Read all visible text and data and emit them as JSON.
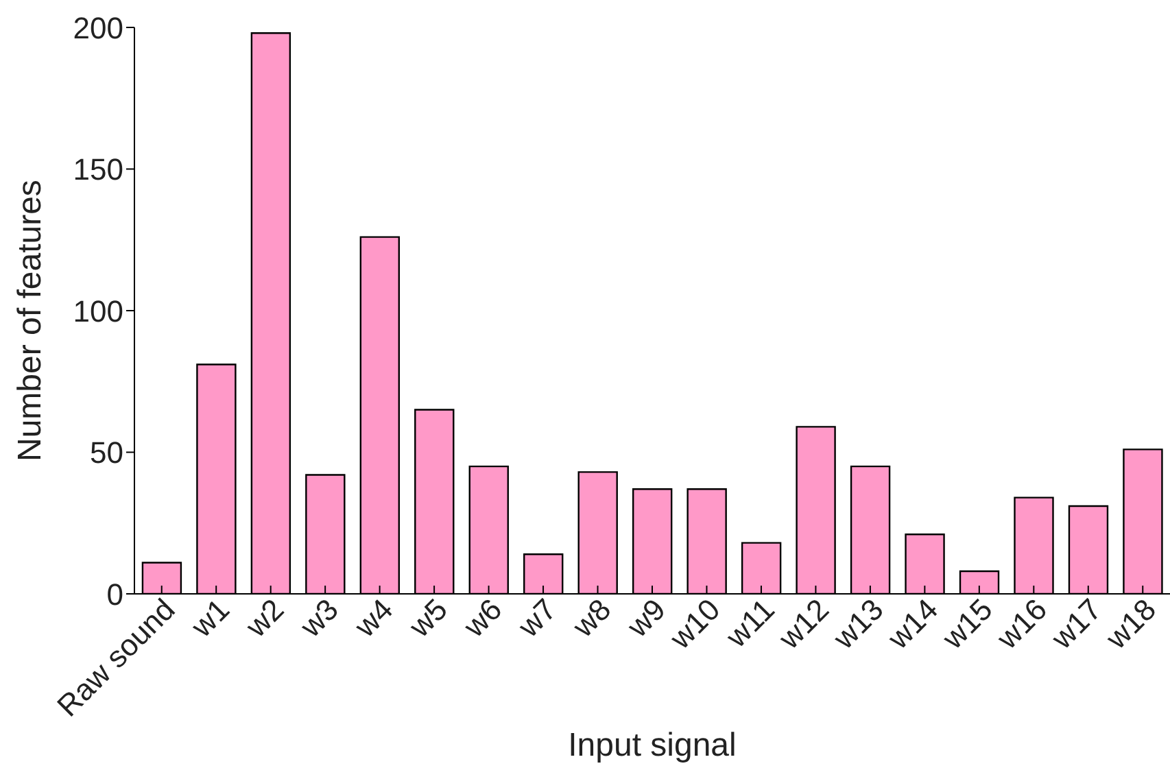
{
  "chart_data": {
    "type": "bar",
    "xlabel": "Input signal",
    "ylabel": "Number of features",
    "categories": [
      "Raw sound",
      "w1",
      "w2",
      "w3",
      "w4",
      "w5",
      "w6",
      "w7",
      "w8",
      "w9",
      "w10",
      "w11",
      "w12",
      "w13",
      "w14",
      "w15",
      "w16",
      "w17",
      "w18"
    ],
    "values": [
      11,
      81,
      198,
      42,
      126,
      65,
      45,
      14,
      43,
      37,
      37,
      18,
      59,
      45,
      21,
      8,
      34,
      31,
      51
    ],
    "color": "#ff99c8",
    "ylim": [
      0,
      200
    ],
    "yticks": [
      0,
      50,
      100,
      150,
      200
    ],
    "grid": false,
    "legend": false
  }
}
